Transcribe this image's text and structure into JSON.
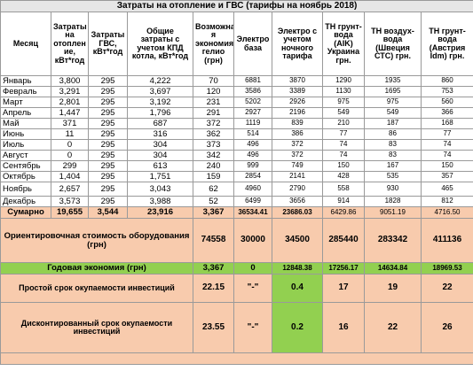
{
  "title": "Затраты на отопление и ГВС (тарифы на ноябрь 2018)",
  "headers": [
    "Месяц",
    "Затраты на отоплен ие, кВт*год",
    "Затраты ГВС, кВт*год",
    "Общие затраты с учетом КПД котла, кВт*год",
    "Возможна я экономия гелио (грн)",
    "Электро база",
    "Электро с учетом ночного тарифа",
    "ТН грунт-вода (AIK) Украина грн.",
    "ТН воздух-вода (Швеция СТС) грн.",
    "ТН грунт-вода (Австрия Idm) грн."
  ],
  "months": [
    {
      "name": "Январь",
      "heat": "3,800",
      "gvs": "295",
      "total": "4,222",
      "helio": "70",
      "el_base": "6881",
      "el_night": "3870",
      "tn_aik": "1290",
      "tn_cts": "1935",
      "tn_idm": "860"
    },
    {
      "name": "Февраль",
      "heat": "3,291",
      "gvs": "295",
      "total": "3,697",
      "helio": "120",
      "el_base": "3586",
      "el_night": "3389",
      "tn_aik": "1130",
      "tn_cts": "1695",
      "tn_idm": "753"
    },
    {
      "name": "Март",
      "heat": "2,801",
      "gvs": "295",
      "total": "3,192",
      "helio": "231",
      "el_base": "5202",
      "el_night": "2926",
      "tn_aik": "975",
      "tn_cts": "975",
      "tn_idm": "560"
    },
    {
      "name": "Апрель",
      "heat": "1,447",
      "gvs": "295",
      "total": "1,796",
      "helio": "291",
      "el_base": "2927",
      "el_night": "2196",
      "tn_aik": "549",
      "tn_cts": "549",
      "tn_idm": "366"
    },
    {
      "name": "Май",
      "heat": "371",
      "gvs": "295",
      "total": "687",
      "helio": "372",
      "el_base": "1119",
      "el_night": "839",
      "tn_aik": "210",
      "tn_cts": "187",
      "tn_idm": "168"
    },
    {
      "name": "Июнь",
      "heat": "11",
      "gvs": "295",
      "total": "316",
      "helio": "362",
      "el_base": "514",
      "el_night": "386",
      "tn_aik": "77",
      "tn_cts": "86",
      "tn_idm": "77"
    },
    {
      "name": "Июль",
      "heat": "0",
      "gvs": "295",
      "total": "304",
      "helio": "373",
      "el_base": "496",
      "el_night": "372",
      "tn_aik": "74",
      "tn_cts": "83",
      "tn_idm": "74"
    },
    {
      "name": "Август",
      "heat": "0",
      "gvs": "295",
      "total": "304",
      "helio": "342",
      "el_base": "496",
      "el_night": "372",
      "tn_aik": "74",
      "tn_cts": "83",
      "tn_idm": "74"
    },
    {
      "name": "Сентябрь",
      "heat": "299",
      "gvs": "295",
      "total": "613",
      "helio": "240",
      "el_base": "999",
      "el_night": "749",
      "tn_aik": "150",
      "tn_cts": "167",
      "tn_idm": "150"
    },
    {
      "name": "Октябрь",
      "heat": "1,404",
      "gvs": "295",
      "total": "1,751",
      "helio": "159",
      "el_base": "2854",
      "el_night": "2141",
      "tn_aik": "428",
      "tn_cts": "535",
      "tn_idm": "357"
    },
    {
      "name": "Ноябрь",
      "heat": "2,657",
      "gvs": "295",
      "total": "3,043",
      "helio": "62",
      "el_base": "4960",
      "el_night": "2790",
      "tn_aik": "558",
      "tn_cts": "930",
      "tn_idm": "465"
    },
    {
      "name": "Декабрь",
      "heat": "3,573",
      "gvs": "295",
      "total": "3,988",
      "helio": "52",
      "el_base": "6499",
      "el_night": "3656",
      "tn_aik": "914",
      "tn_cts": "1828",
      "tn_idm": "812"
    }
  ],
  "sum": {
    "name": "Сумарно",
    "heat": "19,655",
    "gvs": "3,544",
    "total": "23,916",
    "helio": "3,367",
    "el_base": "36534.41",
    "el_night": "23686.03",
    "tn_aik": "6429.86",
    "tn_cts": "9051.19",
    "tn_idm": "4716.50"
  },
  "equipment": {
    "label": "Ориентировочная стоимость оборудования (грн)",
    "helio": "74558",
    "el_base": "30000",
    "el_night": "34500",
    "tn_aik": "285440",
    "tn_cts": "283342",
    "tn_idm": "411136"
  },
  "economy": {
    "label": "Годовая экономия (грн)",
    "helio": "3,367",
    "el_base": "0",
    "el_night": "12848.38",
    "tn_aik": "17256.17",
    "tn_cts": "14634.84",
    "tn_idm": "18969.53"
  },
  "simple_payback": {
    "label": "Простой срок окупаемости инвестиций",
    "helio": "22.15",
    "el_base": "\"-\"",
    "el_night": "0.4",
    "tn_aik": "17",
    "tn_cts": "19",
    "tn_idm": "22"
  },
  "discounted_payback": {
    "label": "Дисконтированный срок окупаемости инвестиций",
    "helio": "23.55",
    "el_base": "\"-\"",
    "el_night": "0.2",
    "tn_aik": "16",
    "tn_cts": "22",
    "tn_idm": "26"
  },
  "colors": {
    "peach": "#f8cbad",
    "green": "#92d050",
    "title_bg": "#e6e6e6"
  }
}
